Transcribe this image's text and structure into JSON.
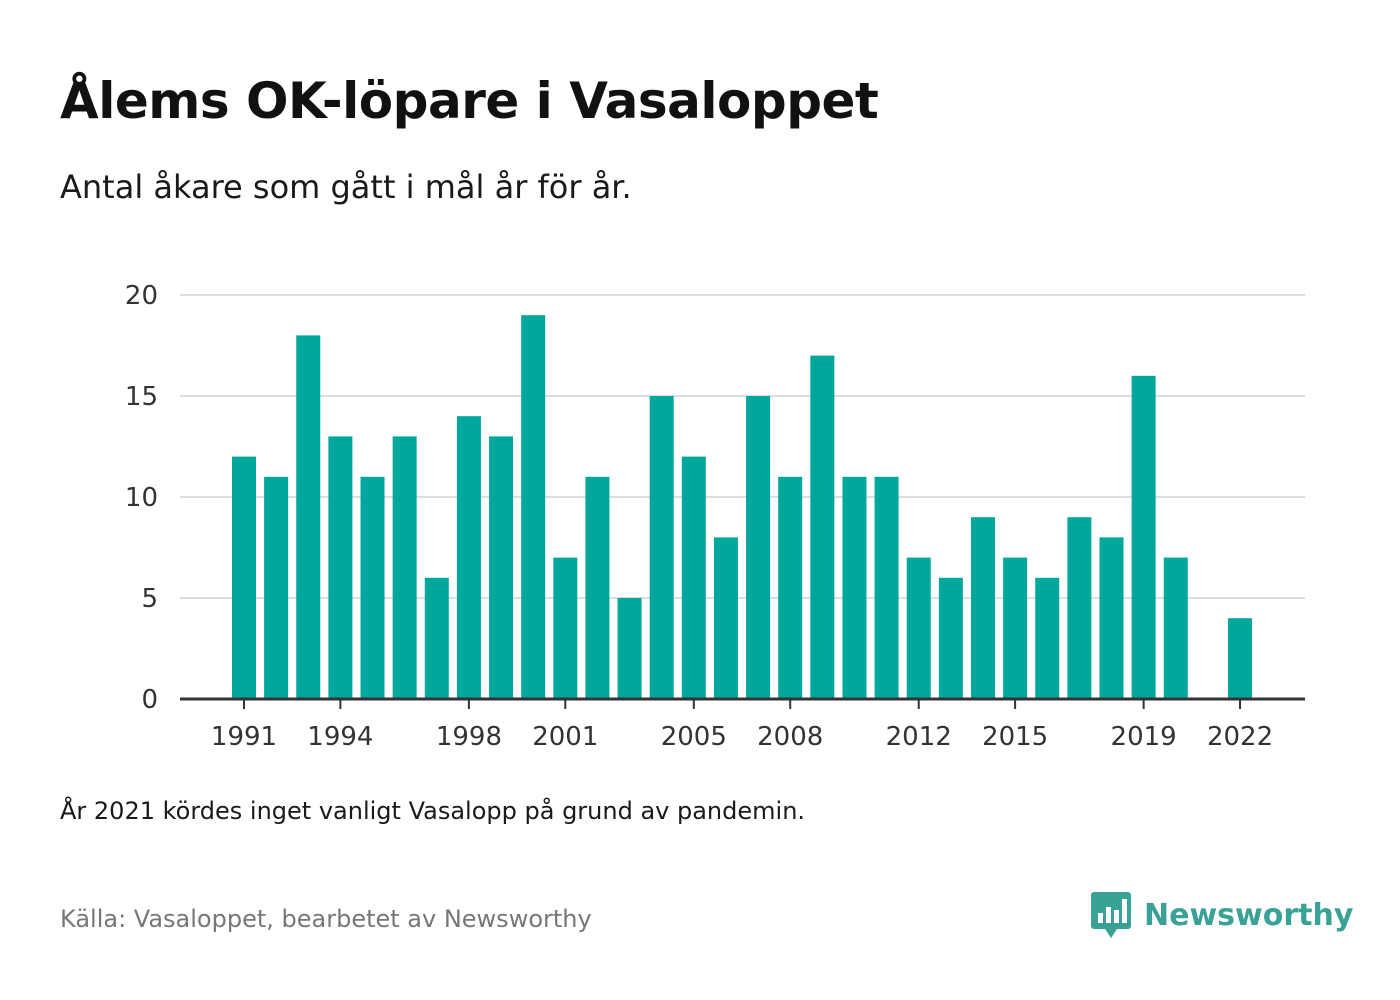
{
  "title": "Ålems OK-löpare i Vasaloppet",
  "subtitle": "Antal åkare som gått i mål år för år.",
  "note": "År 2021 kördes inget vanligt Vasalopp på grund av pandemin.",
  "source": "Källa: Vasaloppet, bearbetet av Newsworthy",
  "logo": {
    "text": "Newsworthy",
    "icon": "newsworthy-logo-icon"
  },
  "colors": {
    "bar": "#00a79d",
    "grid": "#dddddd",
    "axis": "#333333",
    "logo": "#3aa197"
  },
  "chart_data": {
    "type": "bar",
    "title": "Ålems OK-löpare i Vasaloppet",
    "xlabel": "",
    "ylabel": "",
    "ylim": [
      0,
      20
    ],
    "yticks": [
      0,
      5,
      10,
      15,
      20
    ],
    "xtick_labels": [
      "1991",
      "1994",
      "1998",
      "2001",
      "2005",
      "2008",
      "2012",
      "2015",
      "2019",
      "2022"
    ],
    "grid": true,
    "categories": [
      "1991",
      "1992",
      "1993",
      "1994",
      "1995",
      "1996",
      "1997",
      "1998",
      "1999",
      "2000",
      "2001",
      "2002",
      "2003",
      "2004",
      "2005",
      "2006",
      "2007",
      "2008",
      "2009",
      "2010",
      "2011",
      "2012",
      "2013",
      "2014",
      "2015",
      "2016",
      "2017",
      "2018",
      "2019",
      "2020",
      "2021",
      "2022"
    ],
    "values": [
      12,
      11,
      18,
      13,
      11,
      13,
      6,
      14,
      13,
      19,
      7,
      11,
      5,
      15,
      12,
      8,
      15,
      11,
      17,
      11,
      11,
      7,
      6,
      9,
      7,
      6,
      9,
      8,
      16,
      7,
      0,
      4
    ]
  }
}
